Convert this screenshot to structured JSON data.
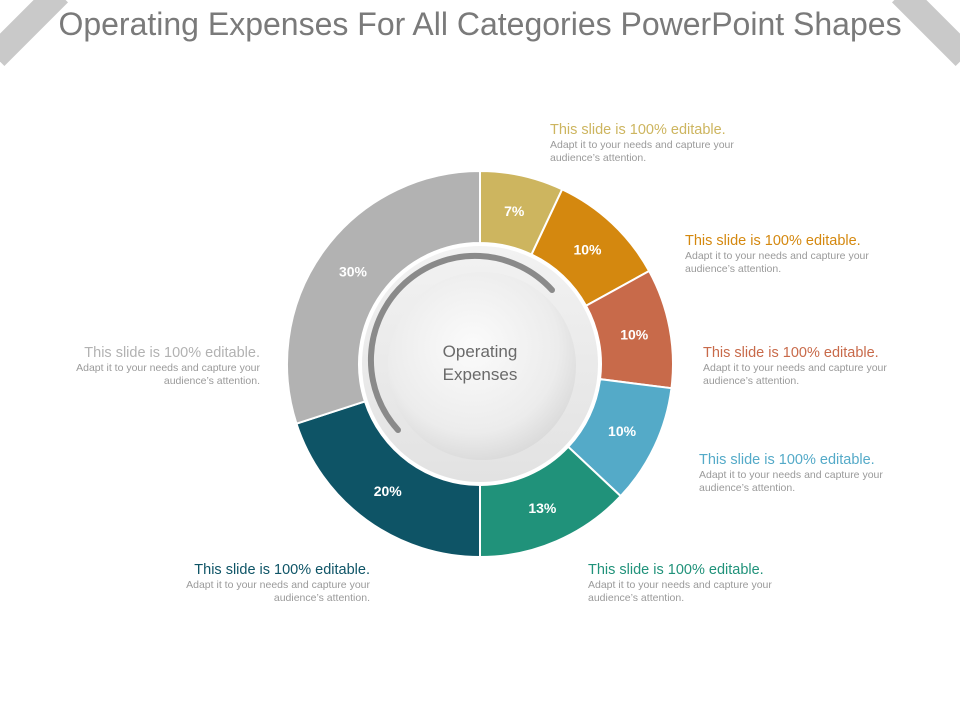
{
  "slide": {
    "title": "Operating Expenses For All Categories PowerPoint Shapes",
    "center_label_line1": "Operating",
    "center_label_line2": "Expenses"
  },
  "chart_data": {
    "type": "pie",
    "donut": true,
    "title": "Operating Expenses For All Categories PowerPoint Shapes",
    "center_label": "Operating Expenses",
    "slices": [
      {
        "label": "7%",
        "value": 7,
        "color": "#cdb55f"
      },
      {
        "label": "10%",
        "value": 10,
        "color": "#d4880f"
      },
      {
        "label": "10%",
        "value": 10,
        "color": "#c86a4a"
      },
      {
        "label": "10%",
        "value": 10,
        "color": "#54aac8"
      },
      {
        "label": "13%",
        "value": 13,
        "color": "#20927a"
      },
      {
        "label": "20%",
        "value": 20,
        "color": "#0e5466"
      },
      {
        "label": "30%",
        "value": 30,
        "color": "#b2b2b2"
      }
    ],
    "legend": "none"
  },
  "notes": [
    {
      "heading": "This slide is 100% editable.",
      "body": "Adapt it to your needs and capture your audience’s attention.",
      "color": "#cdb55f"
    },
    {
      "heading": "This slide is 100% editable.",
      "body": "Adapt it to your needs and capture your audience’s attention.",
      "color": "#d4880f"
    },
    {
      "heading": "This slide is 100% editable.",
      "body": "Adapt it to your needs and capture your audience’s attention.",
      "color": "#c86a4a"
    },
    {
      "heading": "This slide is 100% editable.",
      "body": "Adapt it to your needs and capture your audience’s attention.",
      "color": "#54aac8"
    },
    {
      "heading": "This slide is 100% editable.",
      "body": "Adapt it to your needs and capture your audience’s attention.",
      "color": "#20927a"
    },
    {
      "heading": "This slide is 100% editable.",
      "body": "Adapt it to your needs and capture your audience’s attention.",
      "color": "#0e5466"
    },
    {
      "heading": "This slide is 100% editable.",
      "body": "Adapt it to your needs and capture your audience’s attention.",
      "color": "#b2b2b2"
    }
  ]
}
